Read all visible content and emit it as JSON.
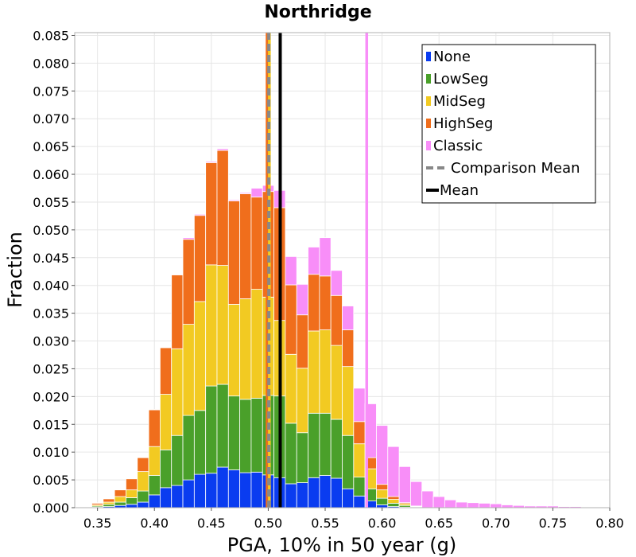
{
  "chart_data": {
    "type": "bar",
    "stacked": true,
    "title": "Northridge",
    "xlabel": "PGA, 10% in 50 year (g)",
    "ylabel": "Fraction",
    "xlim": [
      0.33,
      0.8
    ],
    "ylim": [
      0,
      0.0855
    ],
    "bin_width": 0.01,
    "x": [
      0.35,
      0.36,
      0.37,
      0.38,
      0.39,
      0.4,
      0.41,
      0.42,
      0.43,
      0.44,
      0.45,
      0.46,
      0.47,
      0.48,
      0.49,
      0.5,
      0.51,
      0.52,
      0.53,
      0.54,
      0.55,
      0.56,
      0.57,
      0.58,
      0.59,
      0.6,
      0.61,
      0.62,
      0.63,
      0.64,
      0.65,
      0.66,
      0.67,
      0.68,
      0.69,
      0.7,
      0.71,
      0.72,
      0.73,
      0.74,
      0.75,
      0.76,
      0.77,
      0.78
    ],
    "xticks": [
      "0.35",
      "0.40",
      "0.45",
      "0.50",
      "0.55",
      "0.60",
      "0.65",
      "0.70",
      "0.75",
      "0.80"
    ],
    "yticks": [
      "0.000",
      "0.005",
      "0.010",
      "0.015",
      "0.020",
      "0.025",
      "0.030",
      "0.035",
      "0.040",
      "0.045",
      "0.050",
      "0.055",
      "0.060",
      "0.065",
      "0.070",
      "0.075",
      "0.080",
      "0.085"
    ],
    "series": [
      {
        "name": "None",
        "color": "#0a3cf0",
        "values": [
          0.0001,
          0.0002,
          0.0004,
          0.0006,
          0.001,
          0.0023,
          0.0036,
          0.004,
          0.005,
          0.006,
          0.0062,
          0.0073,
          0.0068,
          0.0063,
          0.0064,
          0.0059,
          0.0054,
          0.0043,
          0.0045,
          0.0054,
          0.0058,
          0.0053,
          0.0034,
          0.0021,
          0.0012,
          0.0005,
          0.0002,
          0.0001,
          0,
          0,
          0,
          0,
          0,
          0,
          0,
          0,
          0,
          0,
          0,
          0,
          0,
          0,
          0,
          0
        ]
      },
      {
        "name": "LowSeg",
        "color": "#4aa02a",
        "values": [
          0.0002,
          0.0004,
          0.0006,
          0.0012,
          0.002,
          0.0035,
          0.0068,
          0.009,
          0.0116,
          0.0115,
          0.0157,
          0.0149,
          0.0133,
          0.0132,
          0.0133,
          0.0143,
          0.0147,
          0.0109,
          0.009,
          0.0116,
          0.0112,
          0.0106,
          0.0096,
          0.0034,
          0.0022,
          0.0012,
          0.0006,
          0.0003,
          0.0001,
          0,
          0,
          0,
          0,
          0,
          0,
          0,
          0,
          0,
          0,
          0,
          0,
          0,
          0,
          0
        ]
      },
      {
        "name": "MidSeg",
        "color": "#f2ca22",
        "values": [
          0.0002,
          0.0004,
          0.001,
          0.0014,
          0.0035,
          0.0052,
          0.01,
          0.0156,
          0.0164,
          0.0196,
          0.0218,
          0.0214,
          0.0165,
          0.0181,
          0.0196,
          0.0177,
          0.0136,
          0.0124,
          0.0116,
          0.0148,
          0.015,
          0.0133,
          0.0124,
          0.006,
          0.0036,
          0.0015,
          0.0007,
          0.0003,
          0.0001,
          0,
          0,
          0,
          0,
          0,
          0,
          0,
          0,
          0,
          0,
          0,
          0,
          0,
          0,
          0
        ]
      },
      {
        "name": "HighSeg",
        "color": "#f06e1c",
        "values": [
          0.0003,
          0.0006,
          0.0012,
          0.002,
          0.0025,
          0.0066,
          0.0084,
          0.0133,
          0.0153,
          0.0155,
          0.0184,
          0.0207,
          0.0186,
          0.0189,
          0.0166,
          0.019,
          0.0203,
          0.0125,
          0.0096,
          0.0102,
          0.0097,
          0.009,
          0.0066,
          0.004,
          0.002,
          0.001,
          0.0005,
          0.0002,
          0.0001,
          0,
          0,
          0,
          0,
          0,
          0,
          0,
          0,
          0,
          0,
          0,
          0,
          0,
          0,
          0
        ]
      },
      {
        "name": "Classic",
        "color": "#f88ef8",
        "values": [
          0.0001,
          0.0001,
          0.0001,
          0.0001,
          0.0001,
          0.0001,
          0.0001,
          0.0001,
          0.0003,
          0.0002,
          0.0002,
          0.0003,
          0.0002,
          0.0002,
          0.0016,
          0.0011,
          0.0031,
          0.0051,
          0.0055,
          0.0049,
          0.0069,
          0.0045,
          0.0043,
          0.006,
          0.0097,
          0.0106,
          0.009,
          0.0065,
          0.0044,
          0.003,
          0.002,
          0.0014,
          0.001,
          0.0009,
          0.0008,
          0.0007,
          0.0005,
          0.0004,
          0.0003,
          0.0003,
          0.0003,
          0.0002,
          0.0002,
          0.0001
        ]
      }
    ],
    "lines": [
      {
        "name": "Comparison Mean",
        "x": 0.5005,
        "style": "dashed",
        "color": "#888888"
      },
      {
        "name": "Mean",
        "x": 0.5105,
        "style": "solid",
        "color": "#000000"
      },
      {
        "name": "",
        "x": 0.499,
        "style": "solid",
        "color": "#f06e1c"
      },
      {
        "name": "",
        "x": 0.501,
        "style": "solid",
        "color": "#f2ca22"
      },
      {
        "name": "",
        "x": 0.5865,
        "style": "solid",
        "color": "#f88ef8"
      }
    ],
    "legend": {
      "position": "top-right",
      "entries": [
        {
          "label": "None",
          "color": "#0a3cf0",
          "kind": "box"
        },
        {
          "label": "LowSeg",
          "color": "#4aa02a",
          "kind": "box"
        },
        {
          "label": "MidSeg",
          "color": "#f2ca22",
          "kind": "box"
        },
        {
          "label": "HighSeg",
          "color": "#f06e1c",
          "kind": "box"
        },
        {
          "label": "Classic",
          "color": "#f88ef8",
          "kind": "box"
        },
        {
          "label": "Comparison Mean",
          "color": "#888888",
          "kind": "dash"
        },
        {
          "label": "Mean",
          "color": "#000000",
          "kind": "line"
        }
      ]
    }
  }
}
